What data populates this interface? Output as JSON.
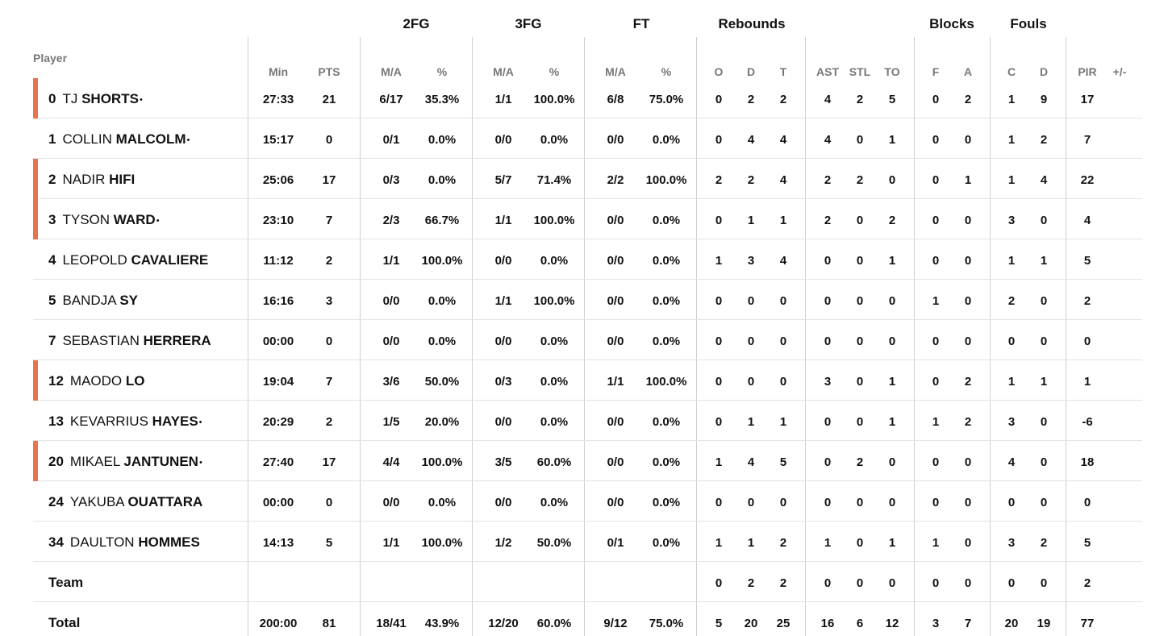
{
  "groups": {
    "fg2": "2FG",
    "fg3": "3FG",
    "ft": "FT",
    "rebounds": "Rebounds",
    "blocks": "Blocks",
    "fouls": "Fouls"
  },
  "player_label": "Player",
  "columns": [
    "Min",
    "PTS",
    "M/A",
    "%",
    "M/A",
    "%",
    "M/A",
    "%",
    "O",
    "D",
    "T",
    "AST",
    "STL",
    "TO",
    "F",
    "A",
    "C",
    "D",
    "PIR",
    "+/-"
  ],
  "colors": {
    "starter_bar": "#e8744d",
    "grid": "#cfcfcf"
  },
  "players": [
    {
      "num": "0",
      "first": "TJ",
      "last": "SHORTS",
      "star": "•",
      "starter": true,
      "stats": [
        "27:33",
        "21",
        "6/17",
        "35.3%",
        "1/1",
        "100.0%",
        "6/8",
        "75.0%",
        "0",
        "2",
        "2",
        "4",
        "2",
        "5",
        "0",
        "2",
        "1",
        "9",
        "17",
        ""
      ]
    },
    {
      "num": "1",
      "first": "COLLIN",
      "last": "MALCOLM",
      "star": "•",
      "starter": false,
      "stats": [
        "15:17",
        "0",
        "0/1",
        "0.0%",
        "0/0",
        "0.0%",
        "0/0",
        "0.0%",
        "0",
        "4",
        "4",
        "4",
        "0",
        "1",
        "0",
        "0",
        "1",
        "2",
        "7",
        ""
      ]
    },
    {
      "num": "2",
      "first": "NADIR",
      "last": "HIFI",
      "star": "",
      "starter": true,
      "stats": [
        "25:06",
        "17",
        "0/3",
        "0.0%",
        "5/7",
        "71.4%",
        "2/2",
        "100.0%",
        "2",
        "2",
        "4",
        "2",
        "2",
        "0",
        "0",
        "1",
        "1",
        "4",
        "22",
        ""
      ]
    },
    {
      "num": "3",
      "first": "TYSON",
      "last": "WARD",
      "star": "•",
      "starter": true,
      "stats": [
        "23:10",
        "7",
        "2/3",
        "66.7%",
        "1/1",
        "100.0%",
        "0/0",
        "0.0%",
        "0",
        "1",
        "1",
        "2",
        "0",
        "2",
        "0",
        "0",
        "3",
        "0",
        "4",
        ""
      ]
    },
    {
      "num": "4",
      "first": "LEOPOLD",
      "last": "CAVALIERE",
      "star": "",
      "starter": false,
      "stats": [
        "11:12",
        "2",
        "1/1",
        "100.0%",
        "0/0",
        "0.0%",
        "0/0",
        "0.0%",
        "1",
        "3",
        "4",
        "0",
        "0",
        "1",
        "0",
        "0",
        "1",
        "1",
        "5",
        ""
      ]
    },
    {
      "num": "5",
      "first": "BANDJA",
      "last": "SY",
      "star": "",
      "starter": false,
      "stats": [
        "16:16",
        "3",
        "0/0",
        "0.0%",
        "1/1",
        "100.0%",
        "0/0",
        "0.0%",
        "0",
        "0",
        "0",
        "0",
        "0",
        "0",
        "1",
        "0",
        "2",
        "0",
        "2",
        ""
      ]
    },
    {
      "num": "7",
      "first": "SEBASTIAN",
      "last": "HERRERA",
      "star": "",
      "starter": false,
      "stats": [
        "00:00",
        "0",
        "0/0",
        "0.0%",
        "0/0",
        "0.0%",
        "0/0",
        "0.0%",
        "0",
        "0",
        "0",
        "0",
        "0",
        "0",
        "0",
        "0",
        "0",
        "0",
        "0",
        ""
      ]
    },
    {
      "num": "12",
      "first": "MAODO",
      "last": "LO",
      "star": "",
      "starter": true,
      "stats": [
        "19:04",
        "7",
        "3/6",
        "50.0%",
        "0/3",
        "0.0%",
        "1/1",
        "100.0%",
        "0",
        "0",
        "0",
        "3",
        "0",
        "1",
        "0",
        "2",
        "1",
        "1",
        "1",
        ""
      ]
    },
    {
      "num": "13",
      "first": "KEVARRIUS",
      "last": "HAYES",
      "star": "•",
      "starter": false,
      "stats": [
        "20:29",
        "2",
        "1/5",
        "20.0%",
        "0/0",
        "0.0%",
        "0/0",
        "0.0%",
        "0",
        "1",
        "1",
        "0",
        "0",
        "1",
        "1",
        "2",
        "3",
        "0",
        "-6",
        ""
      ]
    },
    {
      "num": "20",
      "first": "MIKAEL",
      "last": "JANTUNEN",
      "star": "•",
      "starter": true,
      "stats": [
        "27:40",
        "17",
        "4/4",
        "100.0%",
        "3/5",
        "60.0%",
        "0/0",
        "0.0%",
        "1",
        "4",
        "5",
        "0",
        "2",
        "0",
        "0",
        "0",
        "4",
        "0",
        "18",
        ""
      ]
    },
    {
      "num": "24",
      "first": "YAKUBA",
      "last": "OUATTARA",
      "star": "",
      "starter": false,
      "stats": [
        "00:00",
        "0",
        "0/0",
        "0.0%",
        "0/0",
        "0.0%",
        "0/0",
        "0.0%",
        "0",
        "0",
        "0",
        "0",
        "0",
        "0",
        "0",
        "0",
        "0",
        "0",
        "0",
        ""
      ]
    },
    {
      "num": "34",
      "first": "DAULTON",
      "last": "HOMMES",
      "star": "",
      "starter": false,
      "stats": [
        "14:13",
        "5",
        "1/1",
        "100.0%",
        "1/2",
        "50.0%",
        "0/1",
        "0.0%",
        "1",
        "1",
        "2",
        "1",
        "0",
        "1",
        "1",
        "0",
        "3",
        "2",
        "5",
        ""
      ]
    }
  ],
  "team": {
    "label": "Team",
    "stats": [
      "",
      "",
      "",
      "",
      "",
      "",
      "",
      "",
      "0",
      "2",
      "2",
      "0",
      "0",
      "0",
      "0",
      "0",
      "0",
      "0",
      "2",
      ""
    ]
  },
  "total": {
    "label": "Total",
    "stats": [
      "200:00",
      "81",
      "18/41",
      "43.9%",
      "12/20",
      "60.0%",
      "9/12",
      "75.0%",
      "5",
      "20",
      "25",
      "16",
      "6",
      "12",
      "3",
      "7",
      "20",
      "19",
      "77",
      ""
    ]
  }
}
